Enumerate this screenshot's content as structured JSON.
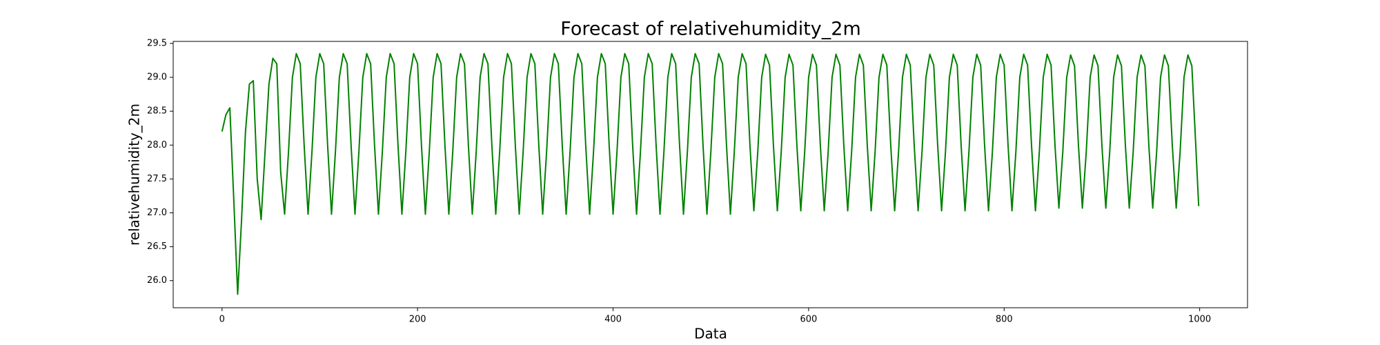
{
  "chart_data": {
    "type": "line",
    "title": "Forecast of relativehumidity_2m",
    "x_label": "Data",
    "y_label": "relativehumidity_2m",
    "x": [
      0,
      4,
      8,
      12,
      16,
      20,
      24,
      28,
      32,
      36,
      40,
      44,
      48,
      52,
      56,
      60,
      64,
      68,
      72,
      76,
      80,
      84,
      88,
      92,
      96,
      100,
      104,
      108,
      112,
      116,
      120,
      124,
      128,
      132,
      136,
      140,
      144,
      148,
      152,
      156,
      160,
      164,
      168,
      172,
      176,
      180,
      184,
      188,
      192,
      196,
      200,
      204,
      208,
      212,
      216,
      220,
      224,
      228,
      232,
      236,
      240,
      244,
      248,
      252,
      256,
      260,
      264,
      268,
      272,
      276,
      280,
      284,
      288,
      292,
      296,
      300,
      304,
      308,
      312,
      316,
      320,
      324,
      328,
      332,
      336,
      340,
      344,
      348,
      352,
      356,
      360,
      364,
      368,
      372,
      376,
      380,
      384,
      388,
      392,
      396,
      400,
      404,
      408,
      412,
      416,
      420,
      424,
      428,
      432,
      436,
      440,
      444,
      448,
      452,
      456,
      460,
      464,
      468,
      472,
      476,
      480,
      484,
      488,
      492,
      496,
      500,
      504,
      508,
      512,
      516,
      520,
      524,
      528,
      532,
      536,
      540,
      544,
      548,
      552,
      556,
      560,
      564,
      568,
      572,
      576,
      580,
      584,
      588,
      592,
      596,
      600,
      604,
      608,
      612,
      616,
      620,
      624,
      628,
      632,
      636,
      640,
      644,
      648,
      652,
      656,
      660,
      664,
      668,
      672,
      676,
      680,
      684,
      688,
      692,
      696,
      700,
      704,
      708,
      712,
      716,
      720,
      724,
      728,
      732,
      736,
      740,
      744,
      748,
      752,
      756,
      760,
      764,
      768,
      772,
      776,
      780,
      784,
      788,
      792,
      796,
      800,
      804,
      808,
      812,
      816,
      820,
      824,
      828,
      832,
      836,
      840,
      844,
      848,
      852,
      856,
      860,
      864,
      868,
      872,
      876,
      880,
      884,
      888,
      892,
      896,
      900,
      904,
      908,
      912,
      916,
      920,
      924,
      928,
      932,
      936,
      940,
      944,
      948,
      952,
      956,
      960,
      964,
      968,
      972,
      976,
      980,
      984,
      988,
      992,
      996,
      999
    ],
    "series": [
      {
        "name": "relativehumidity_2m",
        "color": "#008000",
        "values": [
          28.2,
          28.45,
          28.55,
          27.2,
          25.8,
          26.9,
          28.2,
          28.9,
          28.95,
          27.5,
          26.9,
          27.9,
          28.9,
          29.28,
          29.2,
          27.6,
          26.98,
          27.9,
          29.0,
          29.35,
          29.2,
          28.0,
          26.98,
          27.9,
          29.0,
          29.35,
          29.2,
          28.0,
          26.98,
          27.9,
          29.0,
          29.35,
          29.2,
          28.0,
          26.98,
          27.9,
          29.0,
          29.35,
          29.2,
          28.0,
          26.98,
          27.9,
          29.0,
          29.35,
          29.2,
          28.0,
          26.98,
          27.9,
          29.0,
          29.35,
          29.2,
          28.0,
          26.98,
          27.9,
          29.0,
          29.35,
          29.2,
          28.0,
          26.98,
          27.9,
          29.0,
          29.35,
          29.2,
          28.0,
          26.98,
          27.9,
          29.0,
          29.35,
          29.2,
          28.0,
          26.98,
          27.9,
          29.0,
          29.35,
          29.2,
          28.0,
          26.98,
          27.9,
          29.0,
          29.35,
          29.2,
          28.0,
          26.98,
          27.9,
          29.0,
          29.35,
          29.2,
          28.0,
          26.98,
          27.9,
          29.0,
          29.35,
          29.2,
          28.0,
          26.98,
          27.9,
          29.0,
          29.35,
          29.2,
          28.0,
          26.98,
          27.9,
          29.0,
          29.35,
          29.2,
          28.0,
          26.98,
          27.9,
          29.0,
          29.35,
          29.2,
          28.0,
          26.98,
          27.9,
          29.0,
          29.35,
          29.2,
          28.0,
          26.98,
          27.9,
          29.0,
          29.35,
          29.2,
          28.0,
          26.98,
          27.9,
          29.0,
          29.35,
          29.2,
          28.0,
          26.98,
          27.9,
          29.0,
          29.35,
          29.2,
          28.0,
          27.03,
          27.9,
          29.0,
          29.34,
          29.18,
          28.0,
          27.03,
          27.9,
          29.0,
          29.34,
          29.18,
          28.0,
          27.03,
          27.9,
          29.0,
          29.34,
          29.18,
          28.0,
          27.03,
          27.9,
          29.0,
          29.34,
          29.18,
          28.0,
          27.03,
          27.9,
          29.0,
          29.34,
          29.18,
          28.0,
          27.03,
          27.9,
          29.0,
          29.34,
          29.18,
          28.0,
          27.03,
          27.9,
          29.0,
          29.34,
          29.18,
          28.0,
          27.03,
          27.9,
          29.0,
          29.34,
          29.18,
          28.0,
          27.03,
          27.9,
          29.0,
          29.34,
          29.18,
          28.0,
          27.03,
          27.9,
          29.0,
          29.34,
          29.18,
          28.0,
          27.03,
          27.9,
          29.0,
          29.34,
          29.18,
          28.0,
          27.03,
          27.9,
          29.0,
          29.34,
          29.18,
          28.0,
          27.03,
          27.9,
          29.0,
          29.34,
          29.18,
          28.0,
          27.07,
          27.9,
          29.0,
          29.33,
          29.17,
          28.0,
          27.07,
          27.9,
          29.0,
          29.33,
          29.17,
          28.0,
          27.07,
          27.9,
          29.0,
          29.33,
          29.17,
          28.0,
          27.07,
          27.9,
          29.0,
          29.33,
          29.17,
          28.0,
          27.07,
          27.9,
          29.0,
          29.33,
          29.17,
          28.0,
          27.07,
          27.9,
          29.0,
          29.33,
          29.17,
          28.0,
          27.1
        ]
      }
    ],
    "xlim": [
      -49.95,
      1048.95
    ],
    "ylim": [
      25.6,
      29.53
    ],
    "xticks": [
      0,
      200,
      400,
      600,
      800,
      1000
    ],
    "yticks": [
      {
        "value": 26,
        "label": "26.0"
      },
      26.5,
      {
        "value": 27,
        "label": "27.0"
      },
      27.5,
      {
        "value": 28,
        "label": "28.0"
      },
      28.5,
      {
        "value": 29,
        "label": "29.0"
      },
      29.5
    ],
    "grid": false
  }
}
